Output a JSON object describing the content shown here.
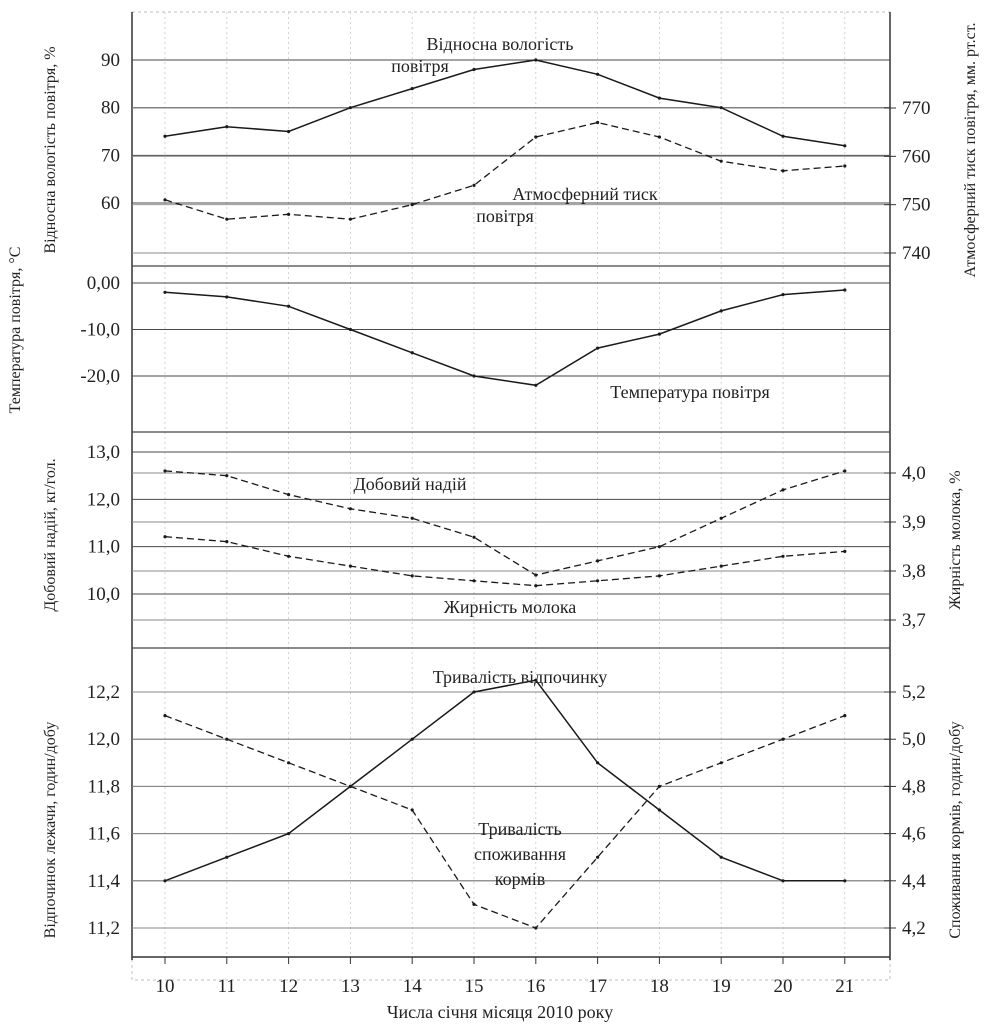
{
  "chart_data": {
    "type": "line",
    "x": [
      10,
      11,
      12,
      13,
      14,
      15,
      16,
      17,
      18,
      19,
      20,
      21
    ],
    "xlabel": "Числа січня місяця 2010 року",
    "x_tick_labels": [
      "10",
      "11",
      "12",
      "13",
      "14",
      "15",
      "16",
      "17",
      "18",
      "19",
      "20",
      "21"
    ],
    "grid": true,
    "panels": [
      {
        "left_axis": {
          "label": "Відносна вологість повітря, %",
          "ylim": [
            55,
            95
          ],
          "ticks": [
            90,
            80,
            70,
            60
          ],
          "tick_labels": [
            "90",
            "80",
            "70",
            "60"
          ]
        },
        "right_axis": {
          "label": "Атмосферний тиск повітря, мм. рт.ст.",
          "ylim": [
            740,
            780
          ],
          "ticks": [
            770,
            760,
            750,
            740
          ],
          "tick_labels": [
            "770",
            "760",
            "750",
            "740"
          ]
        },
        "series": [
          {
            "name": "Відносна вологість повітря",
            "axis": "left",
            "style": "solid",
            "values": [
              74,
              76,
              75,
              80,
              84,
              88,
              90,
              87,
              82,
              80,
              74,
              72
            ]
          },
          {
            "name": "Атмосферний тиск повітря",
            "axis": "right",
            "style": "dashed",
            "values": [
              751,
              747,
              748,
              747,
              750,
              754,
              764,
              767,
              764,
              759,
              757,
              758
            ]
          }
        ],
        "annotations": [
          {
            "text": "Відносна вологість",
            "series": 0
          },
          {
            "text": "повітря",
            "series": 0
          },
          {
            "text": "Атмосферний тиск",
            "series": 1
          },
          {
            "text": "повітря",
            "series": 1
          }
        ]
      },
      {
        "left_axis": {
          "label": "Температура повітря, °C",
          "ylim": [
            -25,
            2
          ],
          "ticks": [
            0,
            -10,
            -20
          ],
          "tick_labels": [
            "0,00",
            "-10,0",
            "-20,0"
          ]
        },
        "series": [
          {
            "name": "Температура повітря",
            "axis": "left",
            "style": "solid",
            "values": [
              -2,
              -3,
              -5,
              -10,
              -15,
              -20,
              -22,
              -14,
              -11,
              -6,
              -2.5,
              -1.5
            ]
          }
        ],
        "annotations": [
          {
            "text": "Температура повітря",
            "series": 0
          }
        ]
      },
      {
        "left_axis": {
          "label": "Добовий надій, кг/гол.",
          "ylim": [
            9.5,
            13.0
          ],
          "ticks": [
            13.0,
            12.0,
            11.0,
            10.0
          ],
          "tick_labels": [
            "13,0",
            "12,0",
            "11,0",
            "10,0"
          ]
        },
        "right_axis": {
          "label": "Жирність молока, %",
          "ylim": [
            3.7,
            4.05
          ],
          "ticks": [
            4.0,
            3.9,
            3.8,
            3.7
          ],
          "tick_labels": [
            "4,0",
            "3,9",
            "3,8",
            "3,7"
          ]
        },
        "series": [
          {
            "name": "Добовий надій",
            "axis": "left",
            "style": "dashed",
            "values": [
              12.6,
              12.5,
              12.1,
              11.8,
              11.6,
              11.2,
              10.4,
              10.7,
              11.0,
              11.6,
              12.2,
              12.6
            ]
          },
          {
            "name": "Жирність молока",
            "axis": "right",
            "style": "dashed",
            "values": [
              3.87,
              3.86,
              3.83,
              3.81,
              3.79,
              3.78,
              3.77,
              3.78,
              3.79,
              3.81,
              3.83,
              3.84
            ]
          }
        ],
        "annotations": [
          {
            "text": "Добовий надій",
            "series": 0
          },
          {
            "text": "Жирність молока",
            "series": 1
          }
        ]
      },
      {
        "left_axis": {
          "label": "Відпочинок лежачи, годин/добу",
          "ylim": [
            11.0,
            12.3
          ],
          "ticks": [
            12.2,
            12.0,
            11.8,
            11.6,
            11.4,
            11.2
          ],
          "tick_labels": [
            "12,2",
            "12,0",
            "11,8",
            "11,6",
            "11,4",
            "11,2"
          ]
        },
        "right_axis": {
          "label": "Споживання кормів, годин/добу",
          "ylim": [
            4.0,
            5.3
          ],
          "ticks": [
            5.2,
            5.0,
            4.8,
            4.6,
            4.4,
            4.2
          ],
          "tick_labels": [
            "5,2",
            "5,0",
            "4,8",
            "4,6",
            "4,4",
            "4,2"
          ]
        },
        "series": [
          {
            "name": "Тривалість відпочинку",
            "axis": "left",
            "style": "solid",
            "values": [
              11.4,
              11.5,
              11.6,
              11.8,
              12.0,
              12.2,
              12.25,
              11.9,
              11.7,
              11.5,
              11.4,
              11.4
            ]
          },
          {
            "name": "Тривалість споживання кормів",
            "axis": "right",
            "style": "dashed",
            "values": [
              5.1,
              5.0,
              4.9,
              4.8,
              4.7,
              4.3,
              4.2,
              4.5,
              4.8,
              4.9,
              5.0,
              5.1
            ]
          }
        ],
        "annotations": [
          {
            "text": "Тривалість відпочинку",
            "series": 0
          },
          {
            "text": "Тривалість",
            "series": 1
          },
          {
            "text": "споживання",
            "series": 1
          },
          {
            "text": "кормів",
            "series": 1
          }
        ]
      }
    ]
  }
}
